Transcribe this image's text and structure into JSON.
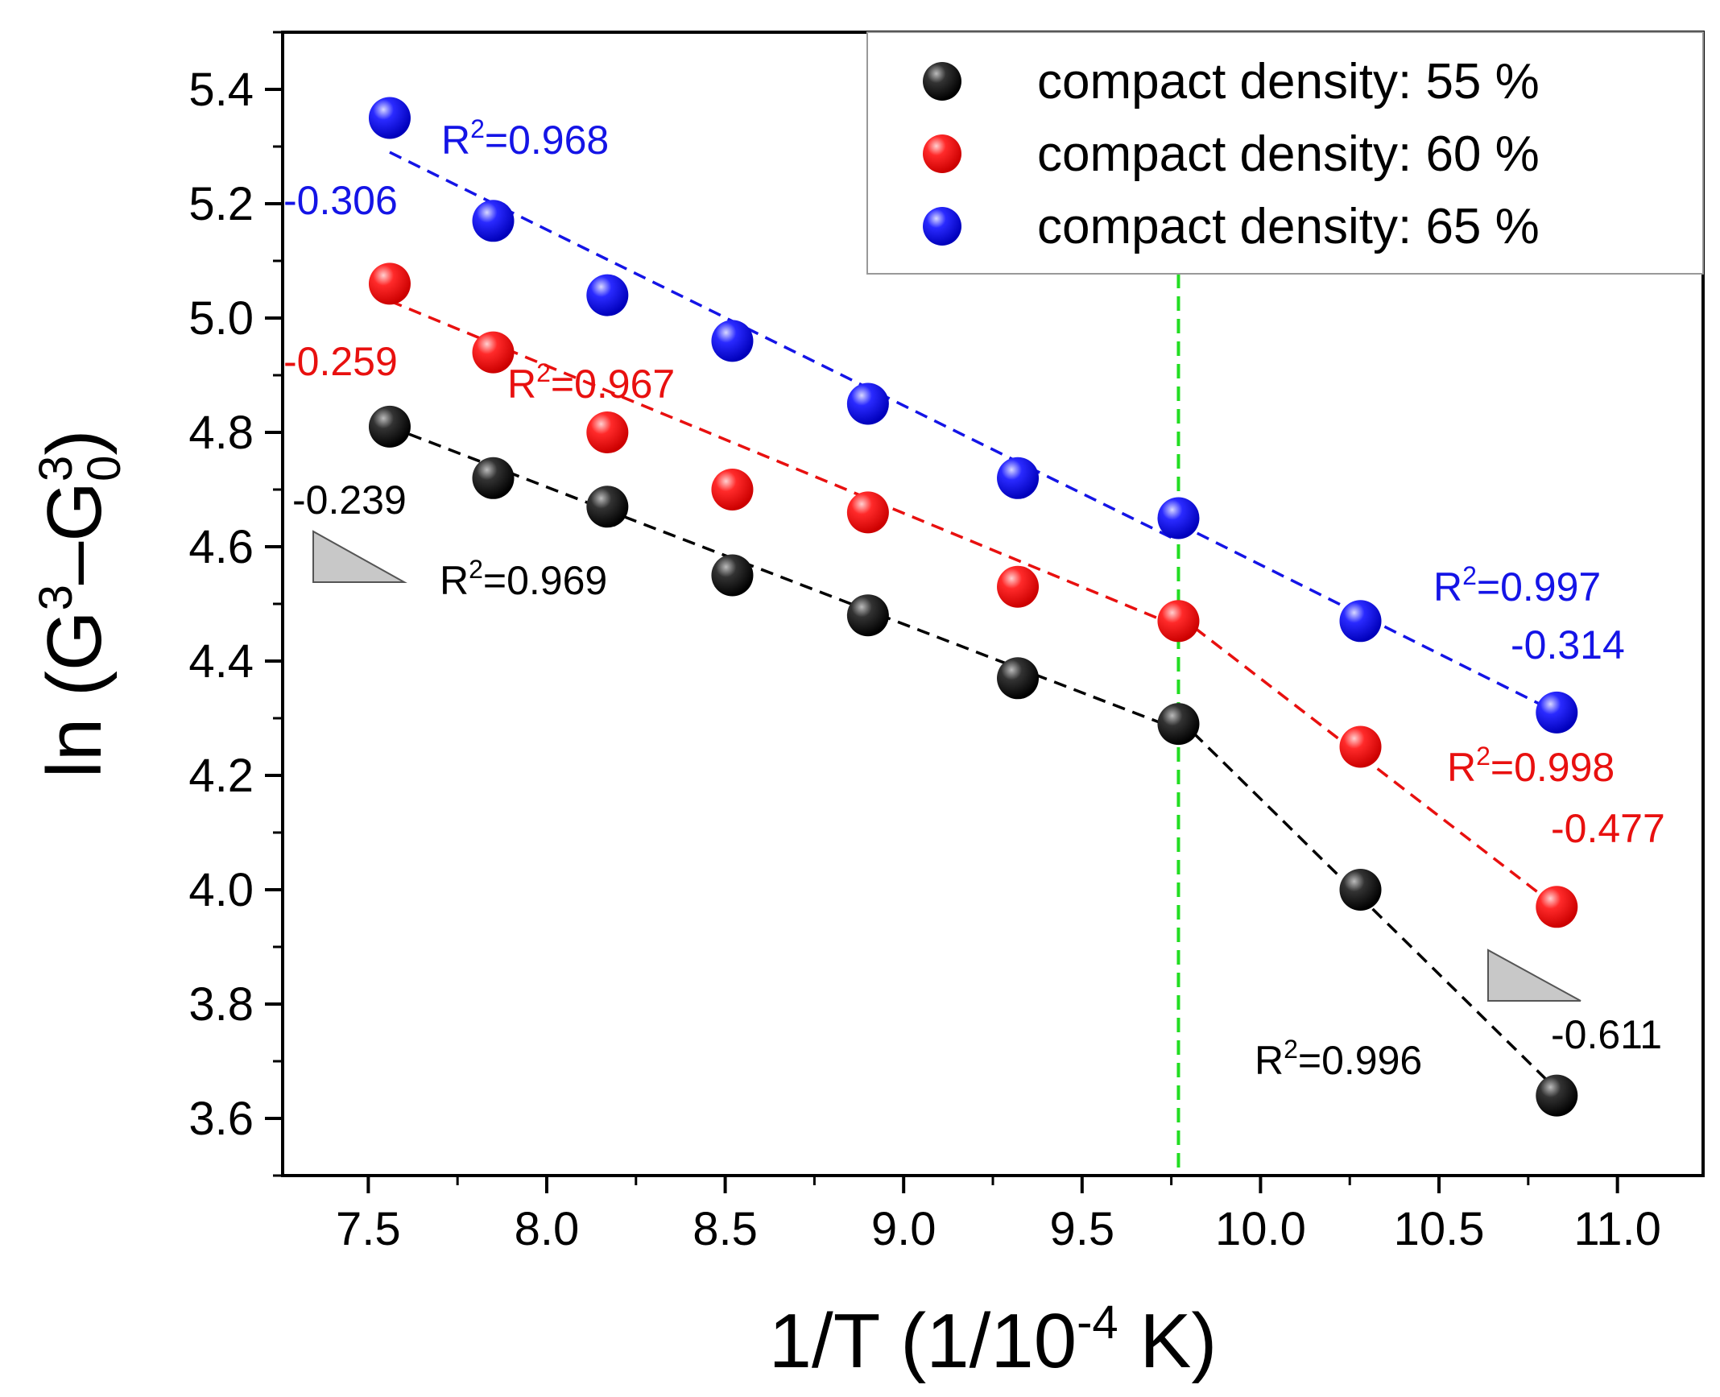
{
  "chart_data": {
    "type": "scatter",
    "title": "",
    "xlabel_main": "1/T (1/10",
    "xlabel_sup": "-4",
    "xlabel_tail": " K)",
    "ylabel_main": "ln (G",
    "ylabel_sup1": "3",
    "ylabel_dash": "–G",
    "ylabel_sub": "0",
    "ylabel_sup2": "3",
    "ylabel_tail": ")",
    "xlim": [
      7.26,
      11.24
    ],
    "ylim": [
      3.5,
      5.5
    ],
    "xticks": [
      "7.5",
      "8.0",
      "8.5",
      "9.0",
      "9.5",
      "10.0",
      "10.5",
      "11.0"
    ],
    "xtick_values": [
      7.5,
      8.0,
      8.5,
      9.0,
      9.5,
      10.0,
      10.5,
      11.0
    ],
    "yticks": [
      "3.6",
      "3.8",
      "4.0",
      "4.2",
      "4.4",
      "4.6",
      "4.8",
      "5.0",
      "5.2",
      "5.4"
    ],
    "ytick_values": [
      3.6,
      3.8,
      4.0,
      4.2,
      4.4,
      4.6,
      4.8,
      5.0,
      5.2,
      5.4
    ],
    "x": [
      7.56,
      7.85,
      8.17,
      8.52,
      8.9,
      9.32,
      9.77,
      10.28,
      10.83
    ],
    "series": [
      {
        "name": "compact density: 55 %",
        "color": "#000000",
        "values": [
          4.81,
          4.72,
          4.67,
          4.55,
          4.48,
          4.37,
          4.29,
          4.0,
          3.64
        ],
        "fits": [
          {
            "x": [
              7.56,
              9.77
            ],
            "y": [
              4.81,
              4.28
            ]
          },
          {
            "x": [
              9.77,
              10.83
            ],
            "y": [
              4.3,
              3.65
            ]
          }
        ]
      },
      {
        "name": "compact density: 60 %",
        "color": "#e8100f",
        "values": [
          5.06,
          4.94,
          4.8,
          4.7,
          4.66,
          4.53,
          4.47,
          4.25,
          3.97
        ],
        "fits": [
          {
            "x": [
              7.56,
              9.77
            ],
            "y": [
              5.03,
              4.46
            ]
          },
          {
            "x": [
              9.77,
              10.83
            ],
            "y": [
              4.48,
              3.97
            ]
          }
        ]
      },
      {
        "name": "compact density: 65 %",
        "color": "#1414e6",
        "values": [
          5.35,
          5.17,
          5.04,
          4.96,
          4.85,
          4.72,
          4.65,
          4.47,
          4.31
        ],
        "fits": [
          {
            "x": [
              7.56,
              9.77
            ],
            "y": [
              5.29,
              4.61
            ]
          },
          {
            "x": [
              9.77,
              10.83
            ],
            "y": [
              4.64,
              4.31
            ]
          }
        ]
      }
    ],
    "annotations": [
      {
        "text": "R",
        "sup": "2",
        "tail": "=0.968",
        "color": "#1414e6"
      },
      {
        "text": "-0.306",
        "color": "#1414e6"
      },
      {
        "text": "-0.259",
        "color": "#e8100f"
      },
      {
        "text": "R",
        "sup": "2",
        "tail": "=0.967",
        "color": "#e8100f"
      },
      {
        "text": "-0.239",
        "color": "#000000"
      },
      {
        "text": "R",
        "sup": "2",
        "tail": "=0.969",
        "color": "#000000"
      },
      {
        "text": "R",
        "sup": "2",
        "tail": "=0.997",
        "color": "#1414e6"
      },
      {
        "text": "-0.314",
        "color": "#1414e6"
      },
      {
        "text": "R",
        "sup": "2",
        "tail": "=0.998",
        "color": "#e8100f"
      },
      {
        "text": "-0.477",
        "color": "#e8100f"
      },
      {
        "text": "-0.611",
        "color": "#000000"
      },
      {
        "text": "R",
        "sup": "2",
        "tail": "=0.996",
        "color": "#000000"
      }
    ],
    "reference_line": {
      "x": 9.77,
      "color": "#22dd22",
      "style": "dashed"
    },
    "legend": {
      "position": "top-right",
      "entries": [
        "compact density: 55 %",
        "compact density: 60 %",
        "compact density: 65 %"
      ]
    }
  }
}
